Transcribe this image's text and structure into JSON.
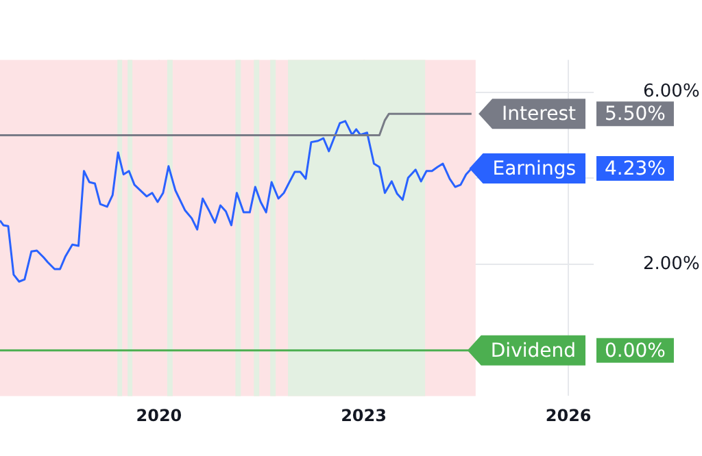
{
  "chart_data": {
    "type": "line",
    "xlim": [
      2017.67,
      2026.37
    ],
    "xticks": [
      2020,
      2023,
      2026
    ],
    "ylim": [
      -1.06,
      6.75
    ],
    "yticks": [
      {
        "value": 2,
        "label": "2.00%"
      },
      {
        "value": 4,
        "label": null
      },
      {
        "value": 6,
        "label": "6.00%"
      }
    ],
    "grid": true,
    "legend": "right",
    "marker": "none",
    "line_style": "solid",
    "series": [
      {
        "name": "Interest",
        "color": "#787b86",
        "x": [
          2017.67,
          2023.23,
          2023.31,
          2023.37,
          2024.58
        ],
        "values": [
          5.0,
          5.0,
          5.35,
          5.5,
          5.5
        ]
      },
      {
        "name": "Earnings",
        "color": "#2962ff",
        "x": [
          2017.67,
          2017.72,
          2017.79,
          2017.87,
          2017.95,
          2018.03,
          2018.13,
          2018.21,
          2018.31,
          2018.37,
          2018.47,
          2018.55,
          2018.63,
          2018.73,
          2018.82,
          2018.9,
          2018.98,
          2019.06,
          2019.14,
          2019.24,
          2019.32,
          2019.4,
          2019.48,
          2019.56,
          2019.64,
          2019.82,
          2019.9,
          2019.98,
          2020.06,
          2020.14,
          2020.24,
          2020.38,
          2020.48,
          2020.56,
          2020.64,
          2020.74,
          2020.82,
          2020.9,
          2020.98,
          2021.06,
          2021.14,
          2021.24,
          2021.33,
          2021.41,
          2021.49,
          2021.57,
          2021.65,
          2021.75,
          2021.83,
          2021.91,
          2021.99,
          2022.07,
          2022.15,
          2022.23,
          2022.33,
          2022.41,
          2022.49,
          2022.65,
          2022.73,
          2022.83,
          2022.89,
          2022.95,
          2023.05,
          2023.15,
          2023.23,
          2023.31,
          2023.41,
          2023.49,
          2023.57,
          2023.65,
          2023.76,
          2023.84,
          2023.92,
          2024.0,
          2024.08,
          2024.16,
          2024.26,
          2024.34,
          2024.42,
          2024.5,
          2024.58
        ],
        "values": [
          3.02,
          2.91,
          2.89,
          1.76,
          1.6,
          1.65,
          2.3,
          2.32,
          2.16,
          2.05,
          1.89,
          1.89,
          2.19,
          2.46,
          2.43,
          4.17,
          3.91,
          3.88,
          3.4,
          3.34,
          3.61,
          4.6,
          4.09,
          4.17,
          3.85,
          3.58,
          3.66,
          3.45,
          3.66,
          4.28,
          3.72,
          3.26,
          3.07,
          2.81,
          3.53,
          3.23,
          2.97,
          3.37,
          3.23,
          2.91,
          3.66,
          3.21,
          3.21,
          3.8,
          3.45,
          3.21,
          3.91,
          3.53,
          3.66,
          3.91,
          4.15,
          4.15,
          3.99,
          4.84,
          4.87,
          4.93,
          4.63,
          5.28,
          5.33,
          5.01,
          5.14,
          5.01,
          5.06,
          4.34,
          4.26,
          3.66,
          3.93,
          3.64,
          3.5,
          4.01,
          4.2,
          3.93,
          4.17,
          4.17,
          4.26,
          4.34,
          3.99,
          3.8,
          3.85,
          4.09,
          4.23
        ]
      },
      {
        "name": "Dividend",
        "color": "#4caf50",
        "x": [
          2017.67,
          2024.58
        ],
        "values": [
          0,
          0
        ]
      }
    ],
    "bands": [
      {
        "axis": "x",
        "from": 2017.67,
        "to": 2024.64,
        "color": "#fde3e5"
      },
      {
        "axis": "x",
        "from": 2019.39,
        "to": 2019.46,
        "color": "#e3f0e2"
      },
      {
        "axis": "x",
        "from": 2019.54,
        "to": 2019.61,
        "color": "#e3f0e2"
      },
      {
        "axis": "x",
        "from": 2020.12,
        "to": 2020.2,
        "color": "#e3f0e2"
      },
      {
        "axis": "x",
        "from": 2021.12,
        "to": 2021.2,
        "color": "#e3f0e2"
      },
      {
        "axis": "x",
        "from": 2021.39,
        "to": 2021.47,
        "color": "#e3f0e2"
      },
      {
        "axis": "x",
        "from": 2021.63,
        "to": 2021.71,
        "color": "#e3f0e2"
      },
      {
        "axis": "x",
        "from": 2021.89,
        "to": 2023.9,
        "color": "#e3f0e2"
      }
    ],
    "annotations": [
      "5.50%",
      "4.23%",
      "0.00%"
    ]
  }
}
